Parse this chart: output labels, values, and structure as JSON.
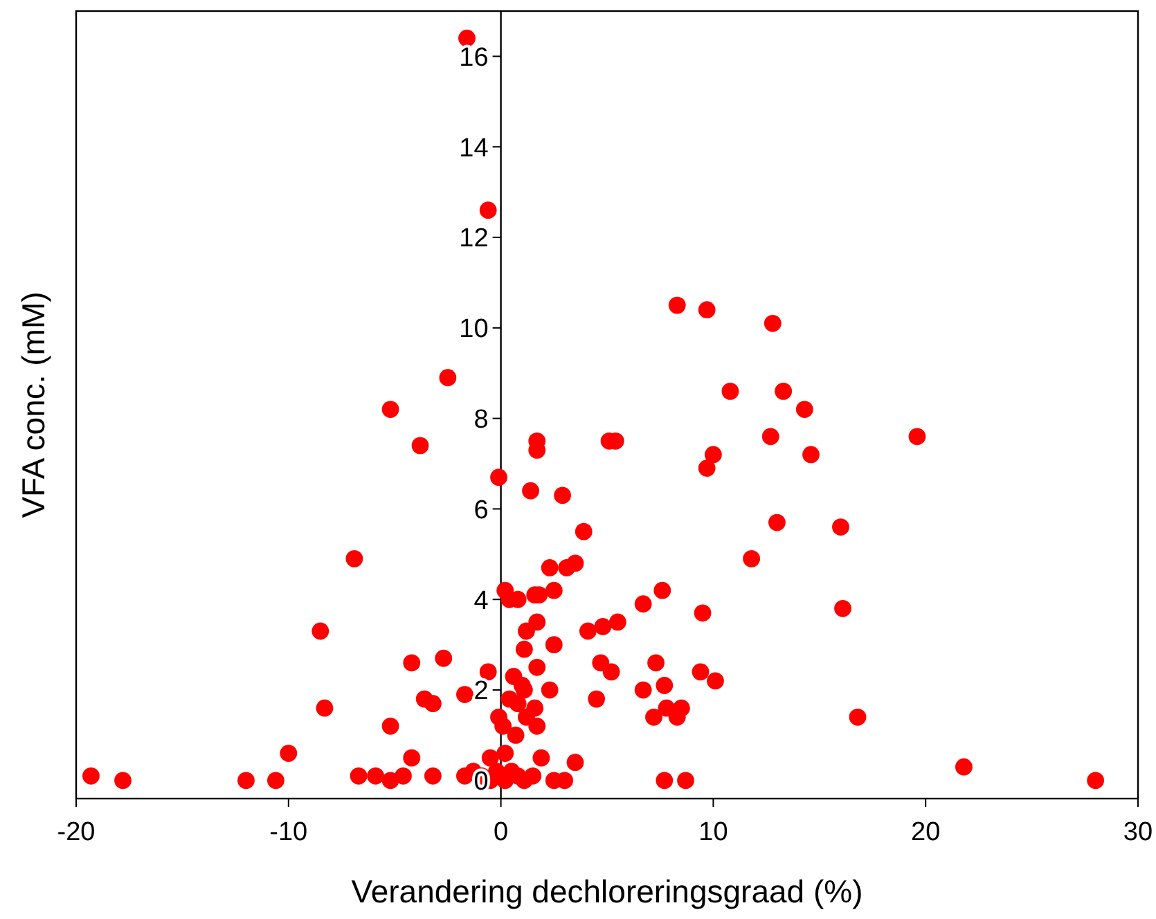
{
  "chart_data": {
    "type": "scatter",
    "xlabel": "Verandering dechloreringsgraad (%)",
    "ylabel": "VFA conc. (mM)",
    "xlim": [
      -20,
      30
    ],
    "ylim": [
      -0.4,
      17
    ],
    "xticks": [
      -20,
      -10,
      0,
      10,
      20,
      30
    ],
    "yticks": [
      0,
      2,
      4,
      6,
      8,
      10,
      12,
      14,
      16
    ],
    "grid": false,
    "marker": "circle",
    "series": [
      {
        "color": "#ff0000",
        "x": [
          -1.6,
          -0.6,
          -2.5,
          -5.2,
          -3.8,
          -0.1,
          1.7,
          1.7,
          1.4,
          2.9,
          5.1,
          5.4,
          3.9,
          3.5,
          3.1,
          2.3,
          2.5,
          0.2,
          0.4,
          0.8,
          1.6,
          1.8,
          1.2,
          1.7,
          1.1,
          2.5,
          1.7,
          0.6,
          1.0,
          1.1,
          2.3,
          0.4,
          0.8,
          1.6,
          1.2,
          -0.1,
          0.1,
          1.7,
          0.7,
          -0.6,
          -1.7,
          -3.6,
          -3.2,
          -2.7,
          -4.2,
          -5.2,
          -6.9,
          -8.5,
          -8.3,
          -10.0,
          -4.2,
          -19.3,
          -17.8,
          -12.0,
          -10.6,
          -6.7,
          -5.9,
          -5.2,
          -4.6,
          -3.2,
          -1.7,
          -1.3,
          -0.9,
          -0.5,
          -0.2,
          0.2,
          0.5,
          0.8,
          1.1,
          1.5,
          -0.5,
          0.2,
          1.9,
          3.5,
          2.5,
          3.0,
          7.7,
          8.7,
          4.1,
          4.8,
          5.5,
          6.7,
          7.6,
          9.5,
          11.8,
          4.7,
          5.2,
          7.3,
          6.7,
          7.7,
          4.5,
          7.2,
          7.8,
          8.5,
          8.3,
          9.4,
          10.1,
          8.3,
          9.7,
          12.8,
          10.8,
          13.3,
          14.3,
          12.7,
          19.6,
          10.0,
          9.7,
          14.6,
          13.0,
          16.0,
          16.1,
          16.8,
          21.8,
          28.0
        ],
        "values": [
          16.4,
          12.6,
          8.9,
          8.2,
          7.4,
          6.7,
          7.5,
          7.3,
          6.4,
          6.3,
          7.5,
          7.5,
          5.5,
          4.8,
          4.7,
          4.7,
          4.2,
          4.2,
          4.0,
          4.0,
          4.1,
          4.1,
          3.3,
          3.5,
          2.9,
          3.0,
          2.5,
          2.3,
          2.1,
          2.0,
          2.0,
          1.8,
          1.7,
          1.6,
          1.4,
          1.4,
          1.2,
          1.2,
          1.0,
          2.4,
          1.9,
          1.8,
          1.7,
          2.7,
          2.6,
          1.2,
          4.9,
          3.3,
          1.6,
          0.6,
          0.5,
          0.1,
          0.0,
          0.0,
          0.0,
          0.1,
          0.1,
          0.0,
          0.1,
          0.1,
          0.1,
          0.2,
          0.1,
          0.0,
          0.2,
          0.0,
          0.2,
          0.1,
          0.0,
          0.1,
          0.5,
          0.6,
          0.5,
          0.4,
          0.0,
          0.0,
          0.0,
          0.0,
          3.3,
          3.4,
          3.5,
          3.9,
          4.2,
          3.7,
          4.9,
          2.6,
          2.4,
          2.6,
          2.0,
          2.1,
          1.8,
          1.4,
          1.6,
          1.6,
          1.4,
          2.4,
          2.2,
          10.5,
          10.4,
          10.1,
          8.6,
          8.6,
          8.2,
          7.6,
          7.6,
          7.2,
          6.9,
          7.2,
          5.7,
          5.6,
          3.8,
          1.4,
          0.3,
          0.0
        ]
      }
    ]
  }
}
